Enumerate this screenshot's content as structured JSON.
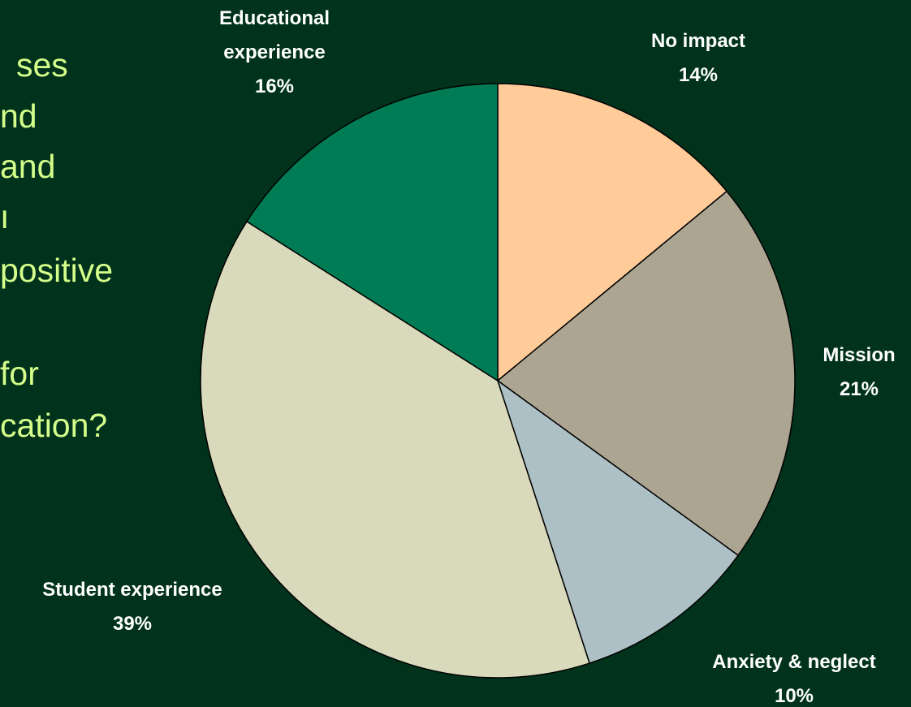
{
  "background_text": [
    "ses",
    "nd",
    "and",
    "ı",
    "positive",
    "for",
    "cation?"
  ],
  "colors": {
    "background": "#00321c",
    "text_light_green": "#d4ff8a",
    "label_white": "#ffffff"
  },
  "chart_data": {
    "type": "pie",
    "title": "",
    "slices": [
      {
        "label": "No impact",
        "value": 14,
        "display": "14%",
        "color": "#ffcb99"
      },
      {
        "label": "Mission",
        "value": 21,
        "display": "21%",
        "color": "#aba591"
      },
      {
        "label": "Anxiety & neglect",
        "value": 10,
        "display": "10%",
        "color": "#adc0c5"
      },
      {
        "label": "Student experience",
        "value": 39,
        "display": "39%",
        "color": "#d8dabb"
      },
      {
        "label": "Educational experience",
        "value": 16,
        "display": "16%",
        "color": "#007c55"
      }
    ]
  }
}
